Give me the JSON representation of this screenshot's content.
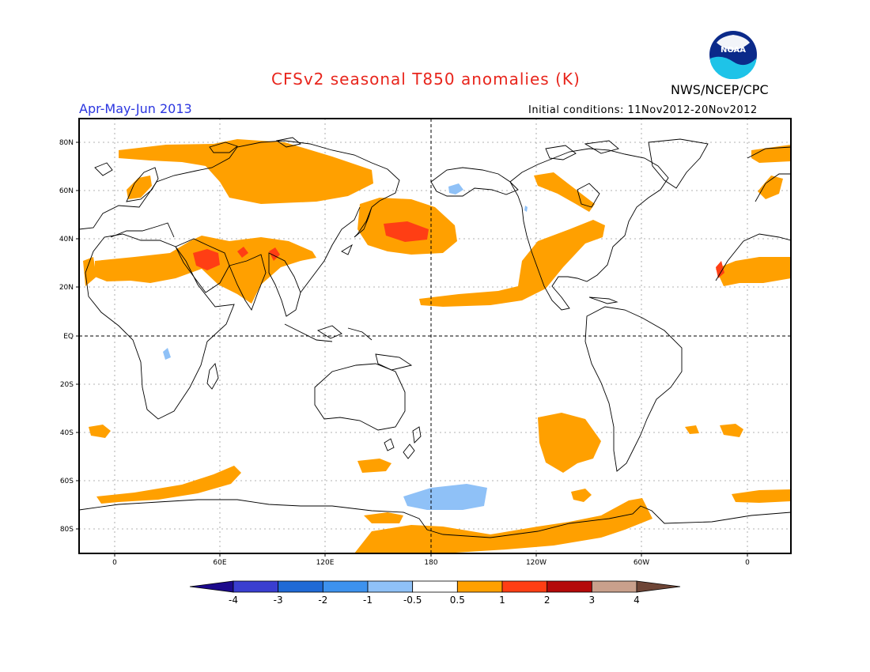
{
  "title": "CFSv2 seasonal T850 anomalies (K)",
  "season": "Apr-May-Jun 2013",
  "initial_conditions": "Initial conditions: 11Nov2012-20Nov2012",
  "agency": "NWS/NCEP/CPC",
  "logo_text": "NOAA",
  "lat_labels": [
    "80N",
    "60N",
    "40N",
    "20N",
    "EQ",
    "20S",
    "40S",
    "60S",
    "80S"
  ],
  "lon_labels": [
    "0",
    "60E",
    "120E",
    "180",
    "120W",
    "60W",
    "0"
  ],
  "colorbar": {
    "labels": [
      "-4",
      "-3",
      "-2",
      "-1",
      "-0.5",
      "0.5",
      "1",
      "2",
      "3",
      "4"
    ],
    "colors": [
      "#1c0a8c",
      "#3a3ed0",
      "#1f6ad6",
      "#3d92ee",
      "#8fc1f7",
      "#ffffff",
      "#ffa000",
      "#ff3e14",
      "#b40a0a",
      "#c9a08c",
      "#6e4536"
    ]
  },
  "colors": {
    "title": "#e8251c",
    "season": "#2b36e0",
    "positive_anomaly": "#ffa000",
    "strong_positive_anomaly": "#ff3e14",
    "negative_anomaly": "#8fc1f7"
  }
}
